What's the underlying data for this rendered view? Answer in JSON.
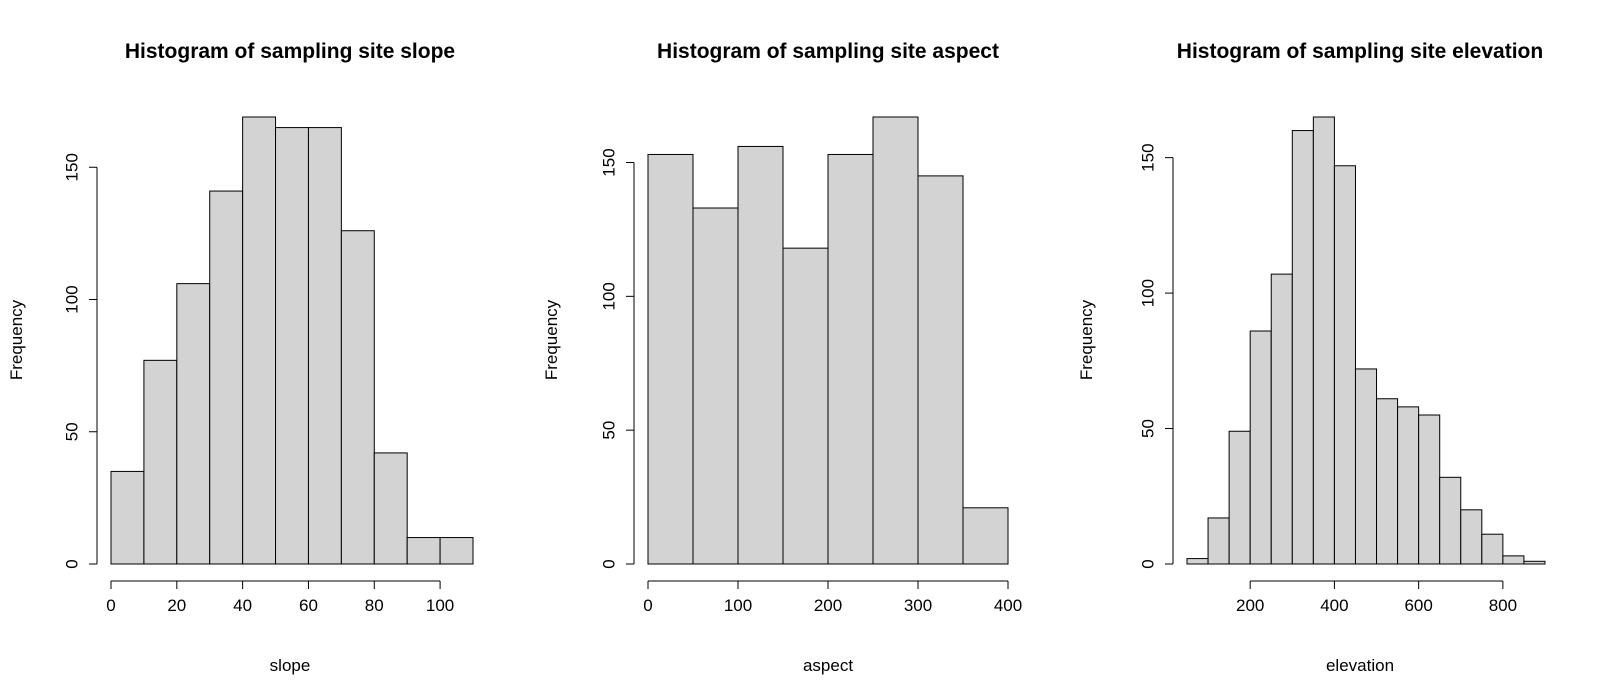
{
  "chart_data": [
    {
      "type": "bar",
      "title": "Histogram of sampling site slope",
      "xlabel": "slope",
      "ylabel": "Frequency",
      "bin_edges": [
        0,
        10,
        20,
        30,
        40,
        50,
        60,
        70,
        80,
        90,
        100,
        110
      ],
      "values": [
        35,
        77,
        106,
        141,
        169,
        165,
        165,
        126,
        42,
        10,
        10
      ],
      "xticks": [
        0,
        20,
        40,
        60,
        80,
        100
      ],
      "yticks": [
        0,
        50,
        100,
        150
      ],
      "xlim": [
        0,
        110
      ],
      "ylim": [
        0,
        169
      ]
    },
    {
      "type": "bar",
      "title": "Histogram of sampling site aspect",
      "xlabel": "aspect",
      "ylabel": "Frequency",
      "bin_edges": [
        0,
        50,
        100,
        150,
        200,
        250,
        300,
        350,
        400
      ],
      "values": [
        153,
        133,
        156,
        118,
        153,
        167,
        145,
        21
      ],
      "xticks": [
        0,
        100,
        200,
        300,
        400
      ],
      "yticks": [
        0,
        50,
        100,
        150
      ],
      "xlim": [
        0,
        400
      ],
      "ylim": [
        0,
        167
      ]
    },
    {
      "type": "bar",
      "title": "Histogram of sampling site elevation",
      "xlabel": "elevation",
      "ylabel": "Frequency",
      "bin_edges": [
        50,
        100,
        150,
        200,
        250,
        300,
        350,
        400,
        450,
        500,
        550,
        600,
        650,
        700,
        750,
        800,
        850,
        900
      ],
      "values": [
        2,
        17,
        49,
        86,
        107,
        160,
        165,
        147,
        72,
        61,
        58,
        55,
        32,
        20,
        11,
        3,
        1
      ],
      "xticks": [
        200,
        400,
        600,
        800
      ],
      "yticks": [
        0,
        50,
        100,
        150
      ],
      "xlim": [
        50,
        900
      ],
      "ylim": [
        0,
        165
      ]
    }
  ],
  "colors": {
    "bar_fill": "#d3d3d3",
    "bar_stroke": "#000000",
    "background": "#ffffff"
  }
}
